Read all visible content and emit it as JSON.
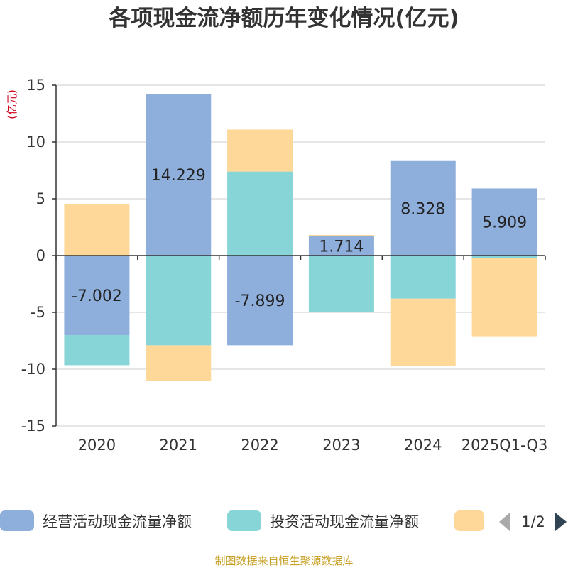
{
  "chart_data": {
    "type": "bar",
    "stacked": true,
    "title": "各项现金流净额历年变化情况(亿元)",
    "ylabel": "(亿元)",
    "xlabel": "",
    "ylim": [
      -15,
      15
    ],
    "yticks": [
      15,
      10,
      5,
      0,
      -5,
      -10,
      -15
    ],
    "ytick_labels": [
      "15",
      "10",
      "5",
      "0",
      "-5",
      "-10",
      "-15"
    ],
    "categories": [
      "2020",
      "2021",
      "2022",
      "2023",
      "2024",
      "2025Q1-Q3"
    ],
    "series": [
      {
        "name": "经营活动现金流量净额",
        "color": "#8eaedb",
        "values": [
          -7.002,
          14.229,
          -7.899,
          1.714,
          8.328,
          5.909
        ],
        "labels": [
          "-7.002",
          "14.229",
          "-7.899",
          "1.714",
          "8.328",
          "5.909"
        ]
      },
      {
        "name": "投资活动现金流量净额",
        "color": "#88d5d8",
        "values": [
          -2.65,
          -7.9,
          7.4,
          -4.95,
          -3.8,
          -0.25
        ]
      },
      {
        "name": "",
        "color": "#fdd898",
        "values": [
          4.55,
          -3.1,
          3.7,
          0.1,
          -5.9,
          -6.85
        ]
      }
    ],
    "legend": {
      "position": "bottom",
      "page": "1/2"
    },
    "source": "制图数据来自恒生聚源数据库"
  }
}
